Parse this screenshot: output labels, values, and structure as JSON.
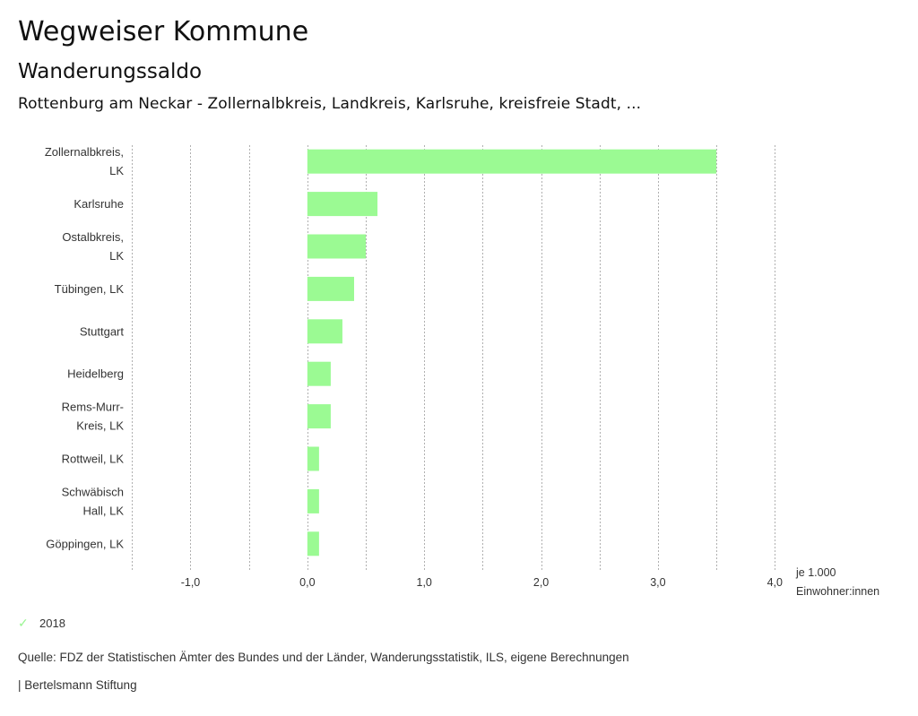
{
  "header": {
    "title": "Wegweiser Kommune",
    "subtitle": "Wanderungssaldo",
    "selection": "Rottenburg am Neckar - Zollernalbkreis, Landkreis, Karlsruhe, kreisfreie Stadt, ..."
  },
  "colors": {
    "bar": "#9bfa93",
    "grid": "#b0b0b0",
    "legend_check": "#9bf593"
  },
  "chart_data": {
    "type": "bar",
    "orientation": "horizontal",
    "categories": [
      [
        "Zollernalbkreis,",
        "LK"
      ],
      [
        "Karlsruhe"
      ],
      [
        "Ostalbkreis,",
        "LK"
      ],
      [
        "Tübingen, LK"
      ],
      [
        "Stuttgart"
      ],
      [
        "Heidelberg"
      ],
      [
        "Rems-Murr-",
        "Kreis, LK"
      ],
      [
        "Rottweil, LK"
      ],
      [
        "Schwäbisch",
        "Hall, LK"
      ],
      [
        "Göppingen, LK"
      ]
    ],
    "series": [
      {
        "name": "2018",
        "values": [
          3.5,
          0.6,
          0.5,
          0.4,
          0.3,
          0.2,
          0.2,
          0.1,
          0.1,
          0.1
        ]
      }
    ],
    "xlim": [
      -1.5,
      4.0
    ],
    "grid_step": 0.5,
    "ticks": [
      {
        "value": -1.0,
        "label": "-1,0"
      },
      {
        "value": 0.0,
        "label": "0,0"
      },
      {
        "value": 1.0,
        "label": "1,0"
      },
      {
        "value": 2.0,
        "label": "2,0"
      },
      {
        "value": 3.0,
        "label": "3,0"
      },
      {
        "value": 4.0,
        "label": "4,0"
      }
    ],
    "unit_label": [
      "je 1.000",
      "Einwohner:innen"
    ],
    "grid": true,
    "legend": {
      "position": "bottom-left",
      "entries": [
        "2018"
      ]
    }
  },
  "legend": {
    "label": "2018",
    "icon": "check-icon"
  },
  "footer": {
    "source": "Quelle: FDZ der Statistischen Ämter des Bundes und der Länder, Wanderungsstatistik, ILS, eigene Berechnungen",
    "brand": "| Bertelsmann Stiftung"
  }
}
